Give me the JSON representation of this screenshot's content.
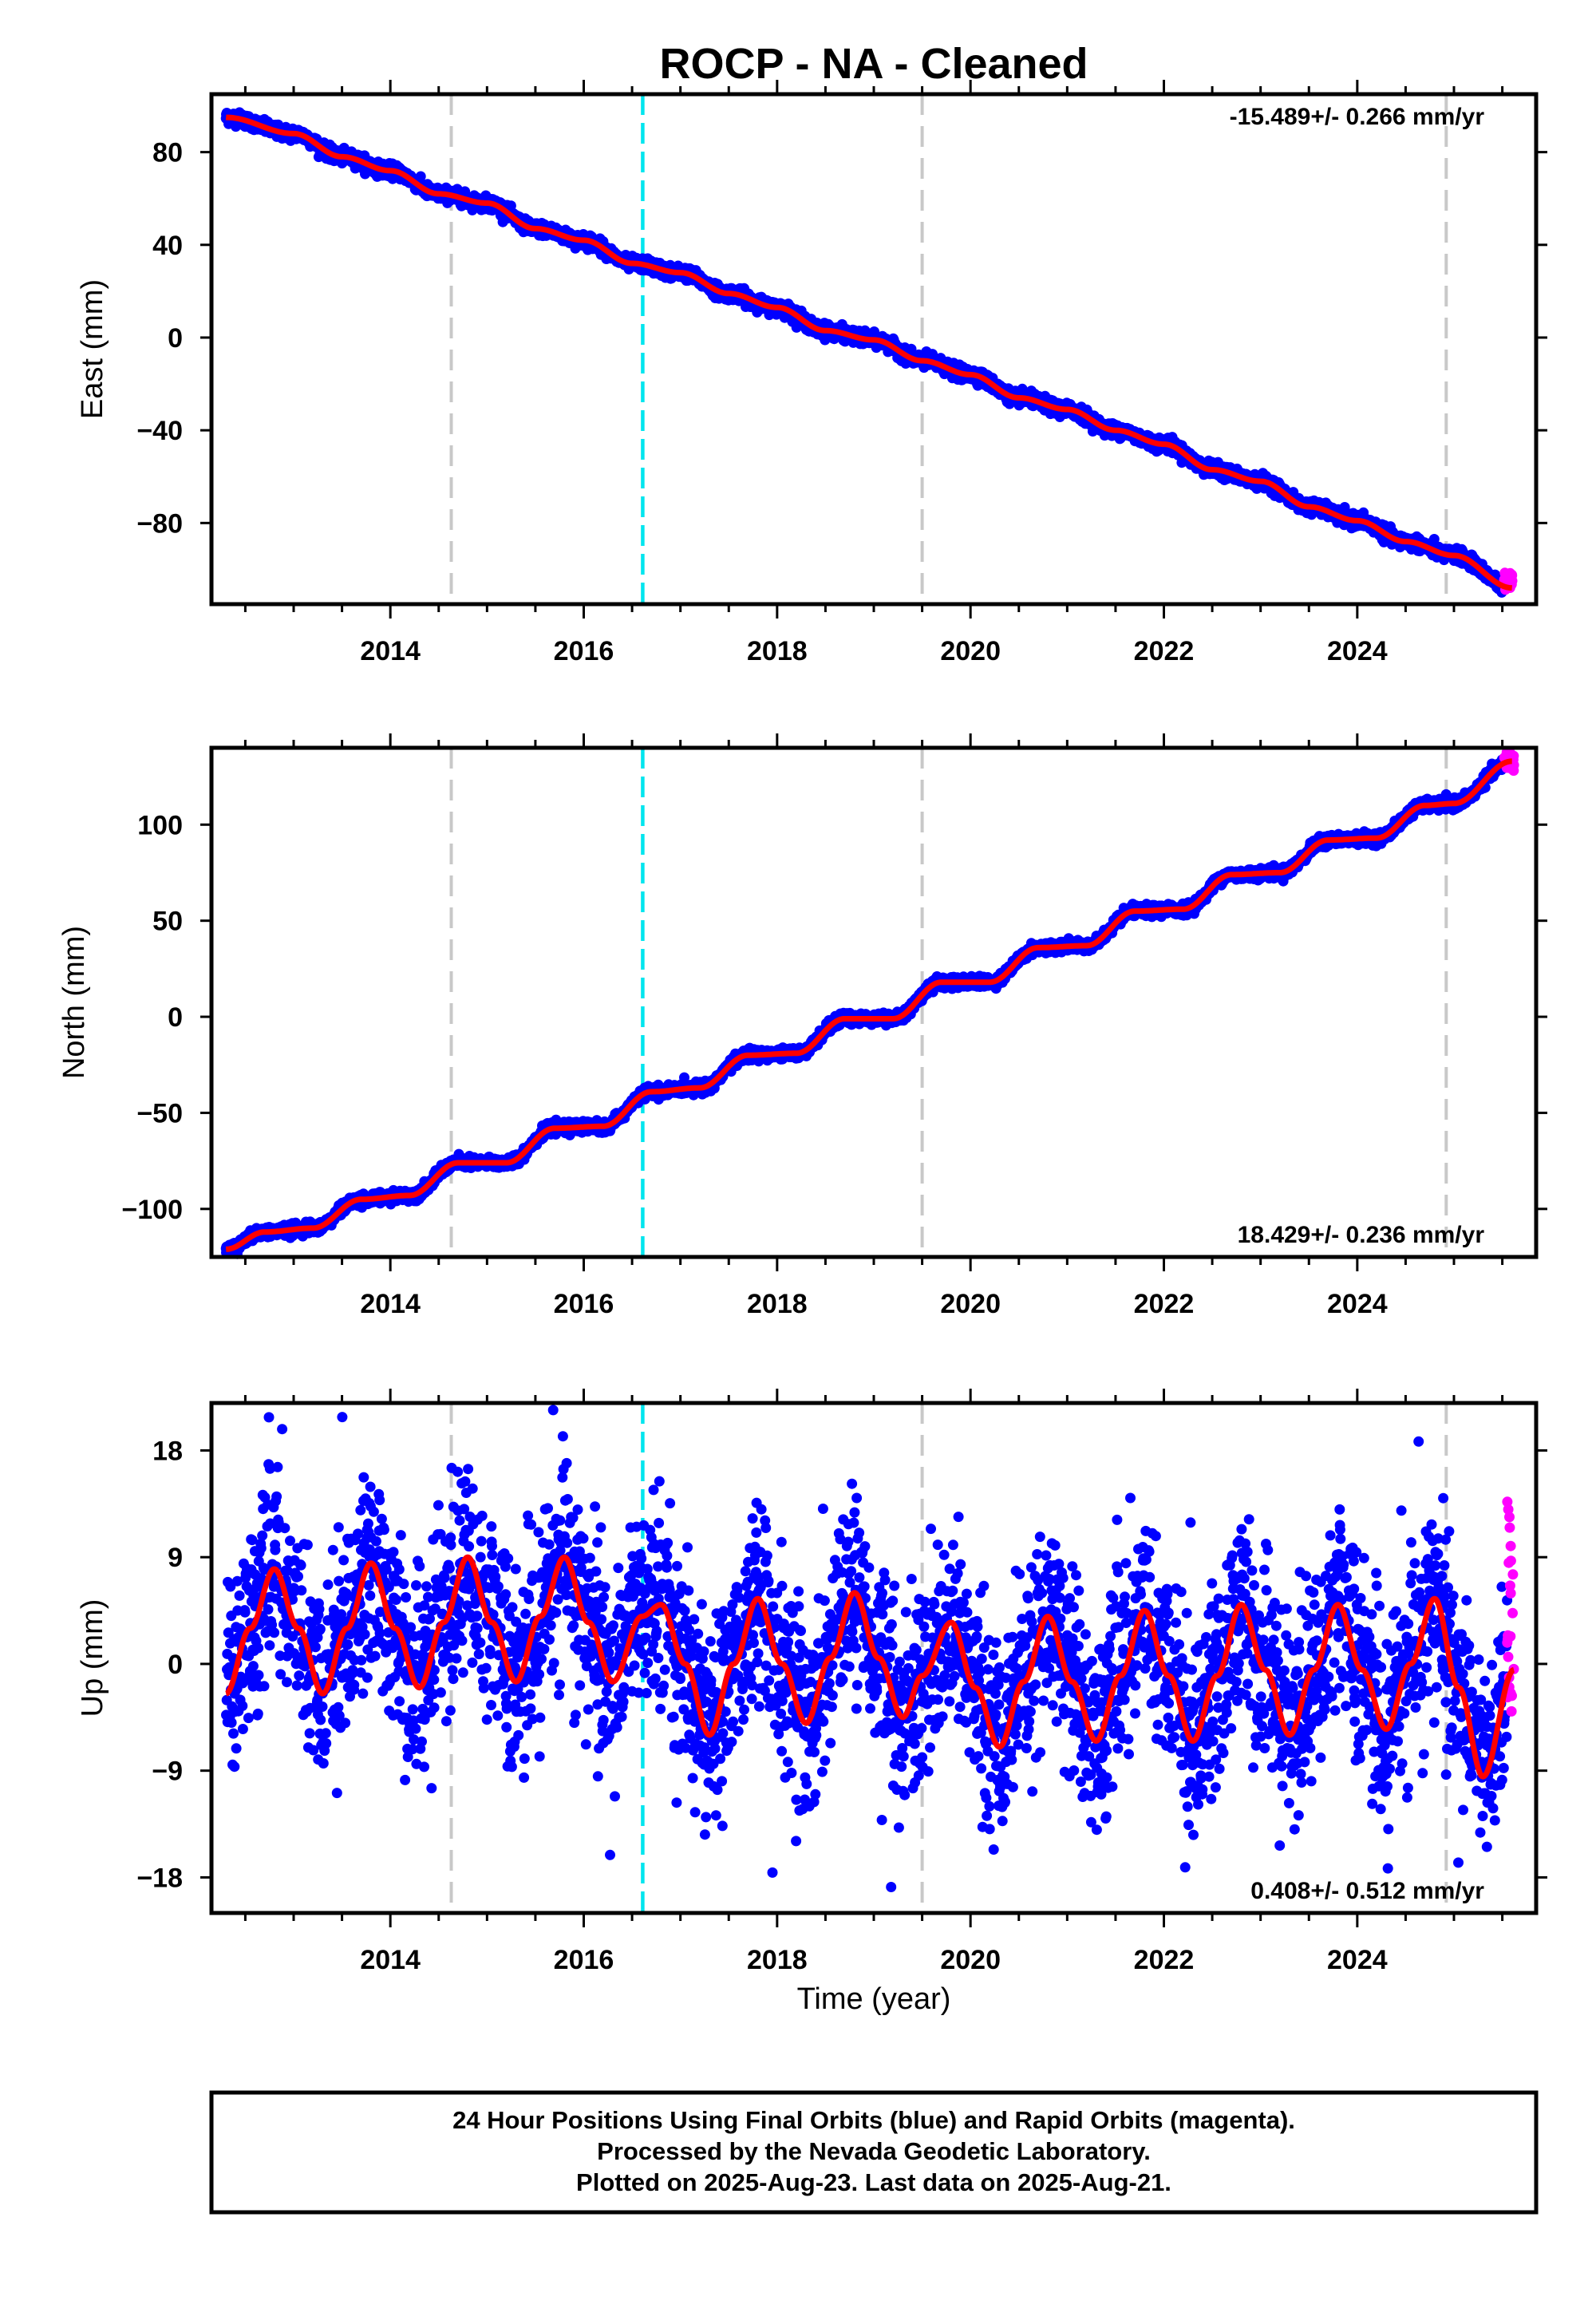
{
  "title": "ROCP  - NA - Cleaned",
  "footer": {
    "lines": [
      "24 Hour Positions Using Final Orbits (blue) and Rapid Orbits (magenta).",
      "Processed by the Nevada Geodetic Laboratory.",
      "Plotted on 2025-Aug-23. Last data on 2025-Aug-21."
    ]
  },
  "colors": {
    "final_orbits": "#0000ff",
    "rapid_orbits": "#ff00ff",
    "model_fit": "#ff0000",
    "equipment_change": "#c8c8c8",
    "earthquake_line": "#00e5ee",
    "frame": "#000000"
  },
  "chart_data": [
    {
      "type": "scatter",
      "name": "east",
      "ylabel": "East (mm)",
      "xlabel": "",
      "xlim": [
        2012.15,
        2025.85
      ],
      "ylim": [
        -115,
        105
      ],
      "xticks": [
        2014,
        2016,
        2018,
        2020,
        2022,
        2024
      ],
      "yticks": [
        80,
        40,
        0,
        -40,
        -80
      ],
      "ytick_labels": [
        "80",
        "40",
        "0",
        "−40",
        "−80"
      ],
      "rate_label": "-15.489+/- 0.266 mm/yr",
      "rate_label_position": "top-right",
      "vertical_lines": {
        "equipment_change": [
          2014.63,
          2019.5,
          2024.92
        ],
        "earthquake": [
          2016.61
        ]
      },
      "fit_points": [
        [
          2012.3,
          95
        ],
        [
          2013.0,
          88
        ],
        [
          2013.5,
          78
        ],
        [
          2014.0,
          72
        ],
        [
          2014.5,
          62
        ],
        [
          2015.0,
          58
        ],
        [
          2015.5,
          47
        ],
        [
          2016.0,
          42
        ],
        [
          2016.5,
          32
        ],
        [
          2017.0,
          28
        ],
        [
          2017.5,
          19
        ],
        [
          2018.0,
          13
        ],
        [
          2018.5,
          3
        ],
        [
          2019.0,
          -1
        ],
        [
          2019.5,
          -10
        ],
        [
          2020.0,
          -16
        ],
        [
          2020.5,
          -26
        ],
        [
          2021.0,
          -31
        ],
        [
          2021.5,
          -40
        ],
        [
          2022.0,
          -46
        ],
        [
          2022.5,
          -57
        ],
        [
          2023.0,
          -62
        ],
        [
          2023.5,
          -73
        ],
        [
          2024.0,
          -79
        ],
        [
          2024.5,
          -88
        ],
        [
          2025.0,
          -94
        ],
        [
          2025.6,
          -108
        ]
      ],
      "scatter_spread": 2.5,
      "rapid_points_span": [
        2025.52,
        2025.62
      ],
      "rapid_points_range": [
        -111,
        -101
      ]
    },
    {
      "type": "scatter",
      "name": "north",
      "ylabel": "North (mm)",
      "xlabel": "",
      "xlim": [
        2012.15,
        2025.85
      ],
      "ylim": [
        -125,
        140
      ],
      "xticks": [
        2014,
        2016,
        2018,
        2020,
        2022,
        2024
      ],
      "yticks": [
        100,
        50,
        0,
        -50,
        -100
      ],
      "ytick_labels": [
        "100",
        "50",
        "0",
        "−50",
        "−100"
      ],
      "rate_label": "18.429+/- 0.236 mm/yr",
      "rate_label_position": "bottom-right",
      "vertical_lines": {
        "equipment_change": [
          2014.63,
          2019.5,
          2024.92
        ],
        "earthquake": [
          2016.61
        ]
      },
      "fit_points": [
        [
          2012.3,
          -121
        ],
        [
          2012.7,
          -112
        ],
        [
          2013.2,
          -110
        ],
        [
          2013.7,
          -95
        ],
        [
          2014.2,
          -93
        ],
        [
          2014.7,
          -76
        ],
        [
          2015.2,
          -76
        ],
        [
          2015.7,
          -58
        ],
        [
          2016.2,
          -57
        ],
        [
          2016.7,
          -39
        ],
        [
          2017.2,
          -37
        ],
        [
          2017.7,
          -20
        ],
        [
          2018.2,
          -19
        ],
        [
          2018.7,
          -1
        ],
        [
          2019.2,
          -1
        ],
        [
          2019.7,
          18
        ],
        [
          2020.2,
          18
        ],
        [
          2020.7,
          36
        ],
        [
          2021.2,
          37
        ],
        [
          2021.7,
          55
        ],
        [
          2022.2,
          56
        ],
        [
          2022.7,
          74
        ],
        [
          2023.2,
          75
        ],
        [
          2023.7,
          92
        ],
        [
          2024.2,
          93
        ],
        [
          2024.7,
          110
        ],
        [
          2025.0,
          111
        ],
        [
          2025.6,
          133
        ]
      ],
      "scatter_spread": 2.5,
      "rapid_points_span": [
        2025.52,
        2025.62
      ],
      "rapid_points_range": [
        128,
        138
      ]
    },
    {
      "type": "scatter",
      "name": "up",
      "ylabel": "Up (mm)",
      "xlabel": "Time (year)",
      "xlim": [
        2012.15,
        2025.85
      ],
      "ylim": [
        -21,
        22
      ],
      "xticks": [
        2014,
        2016,
        2018,
        2020,
        2022,
        2024
      ],
      "yticks": [
        18,
        9,
        0,
        -9,
        -18
      ],
      "ytick_labels": [
        "18",
        "9",
        "0",
        "−9",
        "−18"
      ],
      "rate_label": "0.408+/- 0.512 mm/yr",
      "rate_label_position": "bottom-right",
      "vertical_lines": {
        "equipment_change": [
          2014.63,
          2019.5,
          2024.92
        ],
        "earthquake": [
          2016.61
        ]
      },
      "fit_points": [
        [
          2012.3,
          -2.5
        ],
        [
          2012.55,
          3
        ],
        [
          2012.8,
          8
        ],
        [
          2013.05,
          3
        ],
        [
          2013.3,
          -2.5
        ],
        [
          2013.55,
          3
        ],
        [
          2013.8,
          8.5
        ],
        [
          2014.05,
          3
        ],
        [
          2014.3,
          -2
        ],
        [
          2014.55,
          3.5
        ],
        [
          2014.8,
          9
        ],
        [
          2015.05,
          3.5
        ],
        [
          2015.3,
          -1.5
        ],
        [
          2015.55,
          4
        ],
        [
          2015.8,
          9
        ],
        [
          2016.05,
          3.5
        ],
        [
          2016.3,
          -1.5
        ],
        [
          2016.6,
          4
        ],
        [
          2016.8,
          5
        ],
        [
          2017.05,
          0
        ],
        [
          2017.3,
          -6
        ],
        [
          2017.55,
          0
        ],
        [
          2017.8,
          5.5
        ],
        [
          2018.05,
          0
        ],
        [
          2018.3,
          -5
        ],
        [
          2018.55,
          0.5
        ],
        [
          2018.8,
          6
        ],
        [
          2019.05,
          0.5
        ],
        [
          2019.3,
          -4.5
        ],
        [
          2019.5,
          -1
        ],
        [
          2019.8,
          3.5
        ],
        [
          2020.05,
          -2
        ],
        [
          2020.3,
          -7
        ],
        [
          2020.55,
          -1.5
        ],
        [
          2020.8,
          4
        ],
        [
          2021.05,
          -1.5
        ],
        [
          2021.3,
          -6.5
        ],
        [
          2021.55,
          -1
        ],
        [
          2021.8,
          4.5
        ],
        [
          2022.05,
          -1
        ],
        [
          2022.3,
          -6.5
        ],
        [
          2022.55,
          -1
        ],
        [
          2022.8,
          5
        ],
        [
          2023.05,
          -0.5
        ],
        [
          2023.3,
          -6
        ],
        [
          2023.55,
          -0.5
        ],
        [
          2023.8,
          5
        ],
        [
          2024.05,
          -0.5
        ],
        [
          2024.3,
          -5.5
        ],
        [
          2024.55,
          0
        ],
        [
          2024.8,
          5.5
        ],
        [
          2025.05,
          -2
        ],
        [
          2025.3,
          -9.5
        ],
        [
          2025.62,
          -0.5
        ]
      ],
      "scatter_spread": 9,
      "rapid_points_span": [
        2025.55,
        2025.62
      ],
      "rapid_points_range": [
        -6,
        14
      ]
    }
  ]
}
